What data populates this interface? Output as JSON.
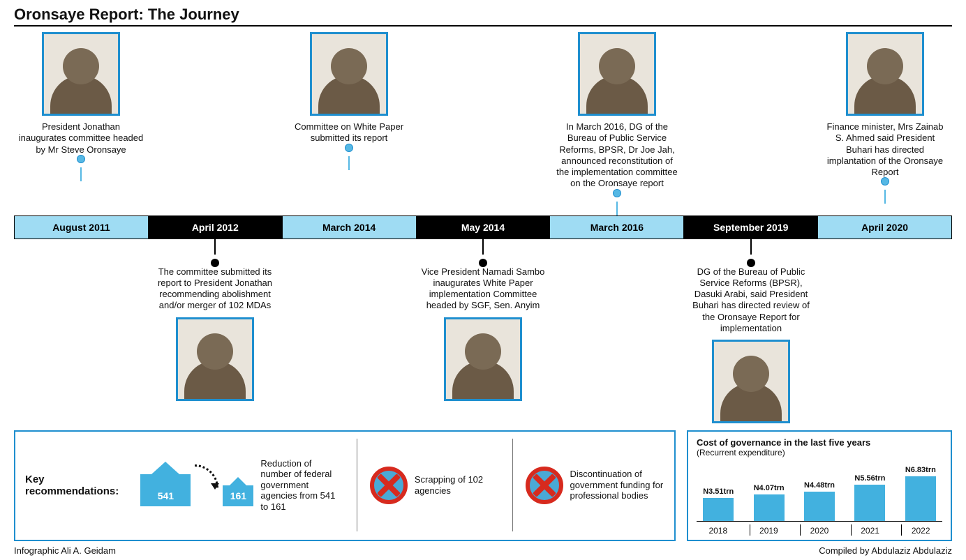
{
  "title": "Oronsaye Report: The Journey",
  "colors": {
    "light_blue": "#9fdcf3",
    "bar_blue": "#42b1df",
    "border_blue": "#1f8fcf",
    "black": "#000000",
    "red": "#d72a1e",
    "background": "#ffffff"
  },
  "timeline": [
    {
      "date": "August 2011",
      "seg_style": "light",
      "position": "top",
      "text": "President Jonathan inaugurates committee headed by Mr Steve Oronsaye"
    },
    {
      "date": "April 2012",
      "seg_style": "dark",
      "position": "bottom",
      "text": "The committee submitted its report to President Jonathan recommending abolishment and/or merger of 102 MDAs"
    },
    {
      "date": "March 2014",
      "seg_style": "light",
      "position": "top",
      "text": "Committee on White Paper submitted its report"
    },
    {
      "date": "May 2014",
      "seg_style": "dark",
      "position": "bottom",
      "text": "Vice President Namadi Sambo inaugurates White Paper implementation Committee headed by SGF, Sen. Anyim"
    },
    {
      "date": "March 2016",
      "seg_style": "light",
      "position": "top",
      "text": "In March 2016, DG of the Bureau of Public Service Reforms, BPSR, Dr Joe Jah, announced reconstitution of the implementation committee on the Oronsaye report"
    },
    {
      "date": "September 2019",
      "seg_style": "dark",
      "position": "bottom",
      "text": "DG of the Bureau of Public Service Reforms (BPSR), Dasuki Arabi, said President Buhari has directed review of the Oronsaye Report for implementation"
    },
    {
      "date": "April 2020",
      "seg_style": "light",
      "position": "top",
      "text": "Finance minister, Mrs Zainab S. Ahmed said President Buhari has directed implantation of the Oronsaye Report"
    }
  ],
  "recommendations": {
    "heading": "Key recommendations:",
    "reduction_from": "541",
    "reduction_to": "161",
    "items": [
      "Reduction of number of federal government agencies from 541 to 161",
      "Scrapping of 102 agencies",
      "Discontinuation of government funding for professional bodies"
    ]
  },
  "cost_chart": {
    "title": "Cost of governance in the last five years",
    "subtitle": "(Recurrent expenditure)",
    "type": "bar",
    "bar_color": "#42b1df",
    "max_value": 7.5,
    "years": [
      "2018",
      "2019",
      "2020",
      "2021",
      "2022"
    ],
    "labels": [
      "N3.51trn",
      "N4.07trn",
      "N4.48trn",
      "N5.56trn",
      "N6.83trn"
    ],
    "values": [
      3.51,
      4.07,
      4.48,
      5.56,
      6.83
    ]
  },
  "credits": {
    "left": "Infographic Ali A. Geidam",
    "right": "Compiled by Abdulaziz Abdulaziz"
  }
}
